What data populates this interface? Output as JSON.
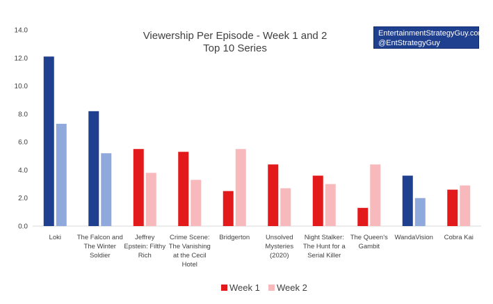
{
  "chart_data": {
    "type": "bar",
    "title": [
      "Viewership Per Episode - Week 1 and 2",
      "Top 10 Series"
    ],
    "xlabel": "",
    "ylabel": "",
    "ylim": [
      0,
      14
    ],
    "yticks": [
      "0.0",
      "2.0",
      "4.0",
      "6.0",
      "8.0",
      "10.0",
      "12.0",
      "14.0"
    ],
    "grid": false,
    "legend_position": "bottom",
    "categories": [
      [
        "Loki"
      ],
      [
        "The Falcon and",
        "The Winter",
        "Soldier"
      ],
      [
        "Jeffrey",
        "Epstein: Filthy",
        "Rich"
      ],
      [
        "Crime Scene:",
        "The Vanishing",
        "at the Cecil",
        "Hotel"
      ],
      [
        "Bridgerton"
      ],
      [
        "Unsolved",
        "Mysteries",
        "(2020)"
      ],
      [
        "Night Stalker:",
        "The Hunt for a",
        "Serial Killer"
      ],
      [
        "The Queen's",
        "Gambit"
      ],
      [
        "WandaVision"
      ],
      [
        "Cobra Kai"
      ]
    ],
    "series": [
      {
        "name": "Week 1",
        "values": [
          12.1,
          8.2,
          5.5,
          5.3,
          2.5,
          4.4,
          3.6,
          1.3,
          3.6,
          2.6
        ]
      },
      {
        "name": "Week 2",
        "values": [
          7.3,
          5.2,
          3.8,
          3.3,
          5.5,
          2.7,
          3.0,
          4.4,
          2.0,
          2.9
        ]
      }
    ],
    "platform": [
      "disney",
      "disney",
      "netflix",
      "netflix",
      "netflix",
      "netflix",
      "netflix",
      "netflix",
      "disney",
      "netflix"
    ],
    "colors": {
      "disney_week1": "#1f3f8f",
      "disney_week2": "#8fa9dc",
      "netflix_week1": "#e31a1c",
      "netflix_week2": "#f7b9bc"
    }
  },
  "credit": {
    "line1": "EntertainmentStrategyGuy.com",
    "line2": "@EntStrategyGuy"
  }
}
